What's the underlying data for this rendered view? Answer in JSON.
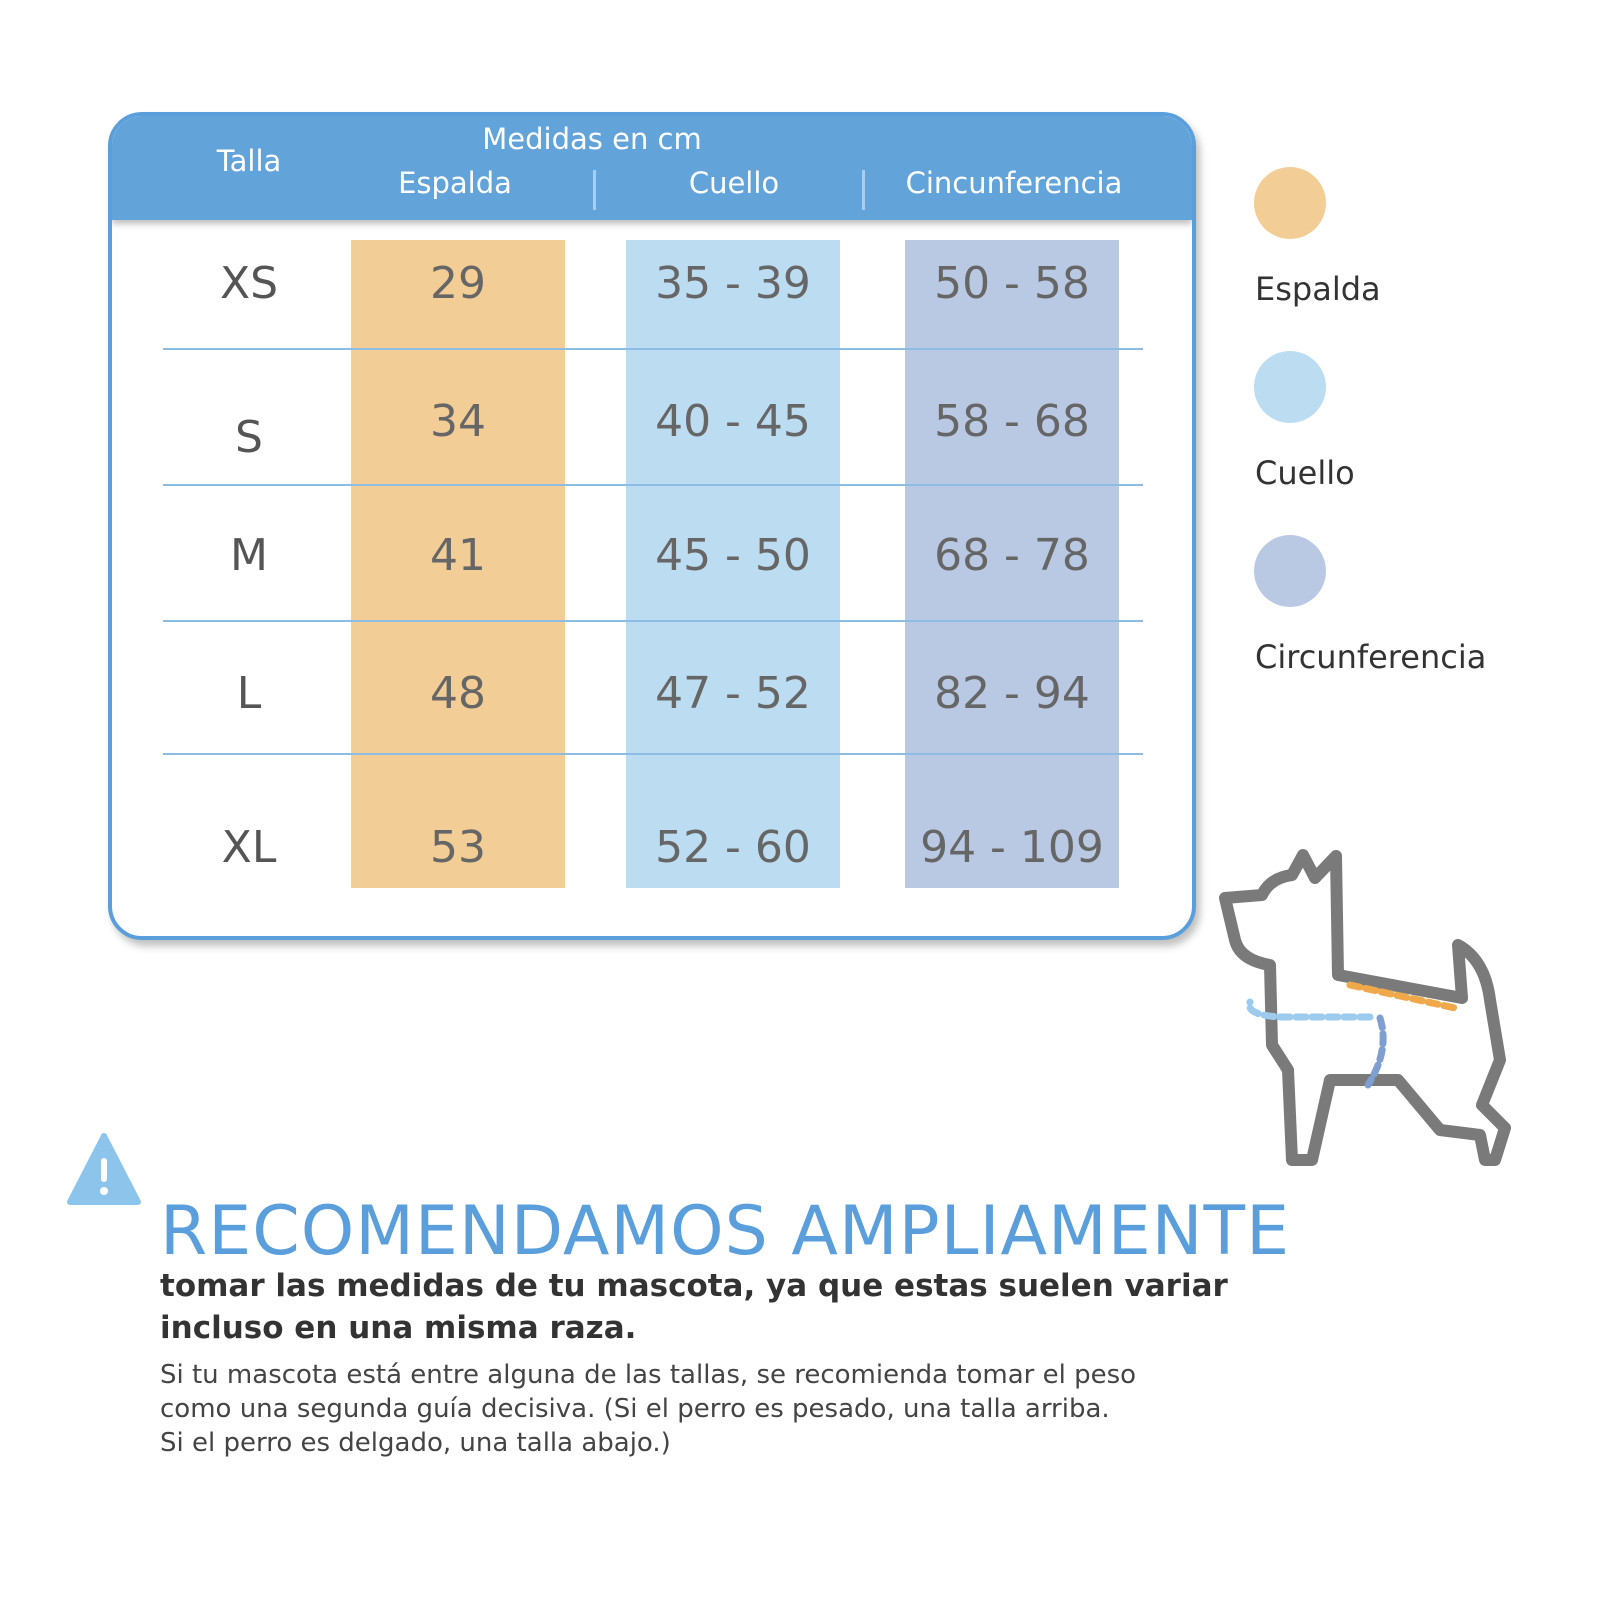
{
  "table": {
    "header": {
      "size": "Talla",
      "group": "Medidas en cm",
      "columns": [
        "Espalda",
        "Cuello",
        "Cincunferencia"
      ]
    },
    "rows": [
      {
        "size": "XS",
        "espalda": "29",
        "cuello": "35 - 39",
        "circ": "50 - 58"
      },
      {
        "size": "S",
        "espalda": "34",
        "cuello": "40 - 45",
        "circ": "58 - 68"
      },
      {
        "size": "M",
        "espalda": "41",
        "cuello": "45 - 50",
        "circ": "68 - 78"
      },
      {
        "size": "L",
        "espalda": "48",
        "cuello": "47 - 52",
        "circ": "82 - 94"
      },
      {
        "size": "XL",
        "espalda": "53",
        "cuello": "52 - 60",
        "circ": "94 - 109"
      }
    ]
  },
  "legend": [
    {
      "label": "Espalda",
      "color": "#f2cd96"
    },
    {
      "label": "Cuello",
      "color": "#bcdcf1"
    },
    {
      "label": "Circunferencia",
      "color": "#b9c9e4"
    }
  ],
  "notice": {
    "icon": "warning-triangle-icon",
    "headline": "RECOMENDAMOS AMPLIAMENTE",
    "subline1": "tomar las medidas de tu mascota, ya que estas suelen variar",
    "subline2": "incluso en una misma raza.",
    "note1": "Si tu mascota está entre alguna de las tallas, se recomienda tomar el peso",
    "note2": "como una segunda guía decisiva. (Si el perro es pesado, una talla arriba.",
    "note3": "Si el perro es delgado, una talla abajo.)"
  },
  "colors": {
    "accent": "#5a9fdc",
    "espalda": "#f2cd96",
    "cuello": "#bcdcf1",
    "circ": "#b9c9e4"
  }
}
